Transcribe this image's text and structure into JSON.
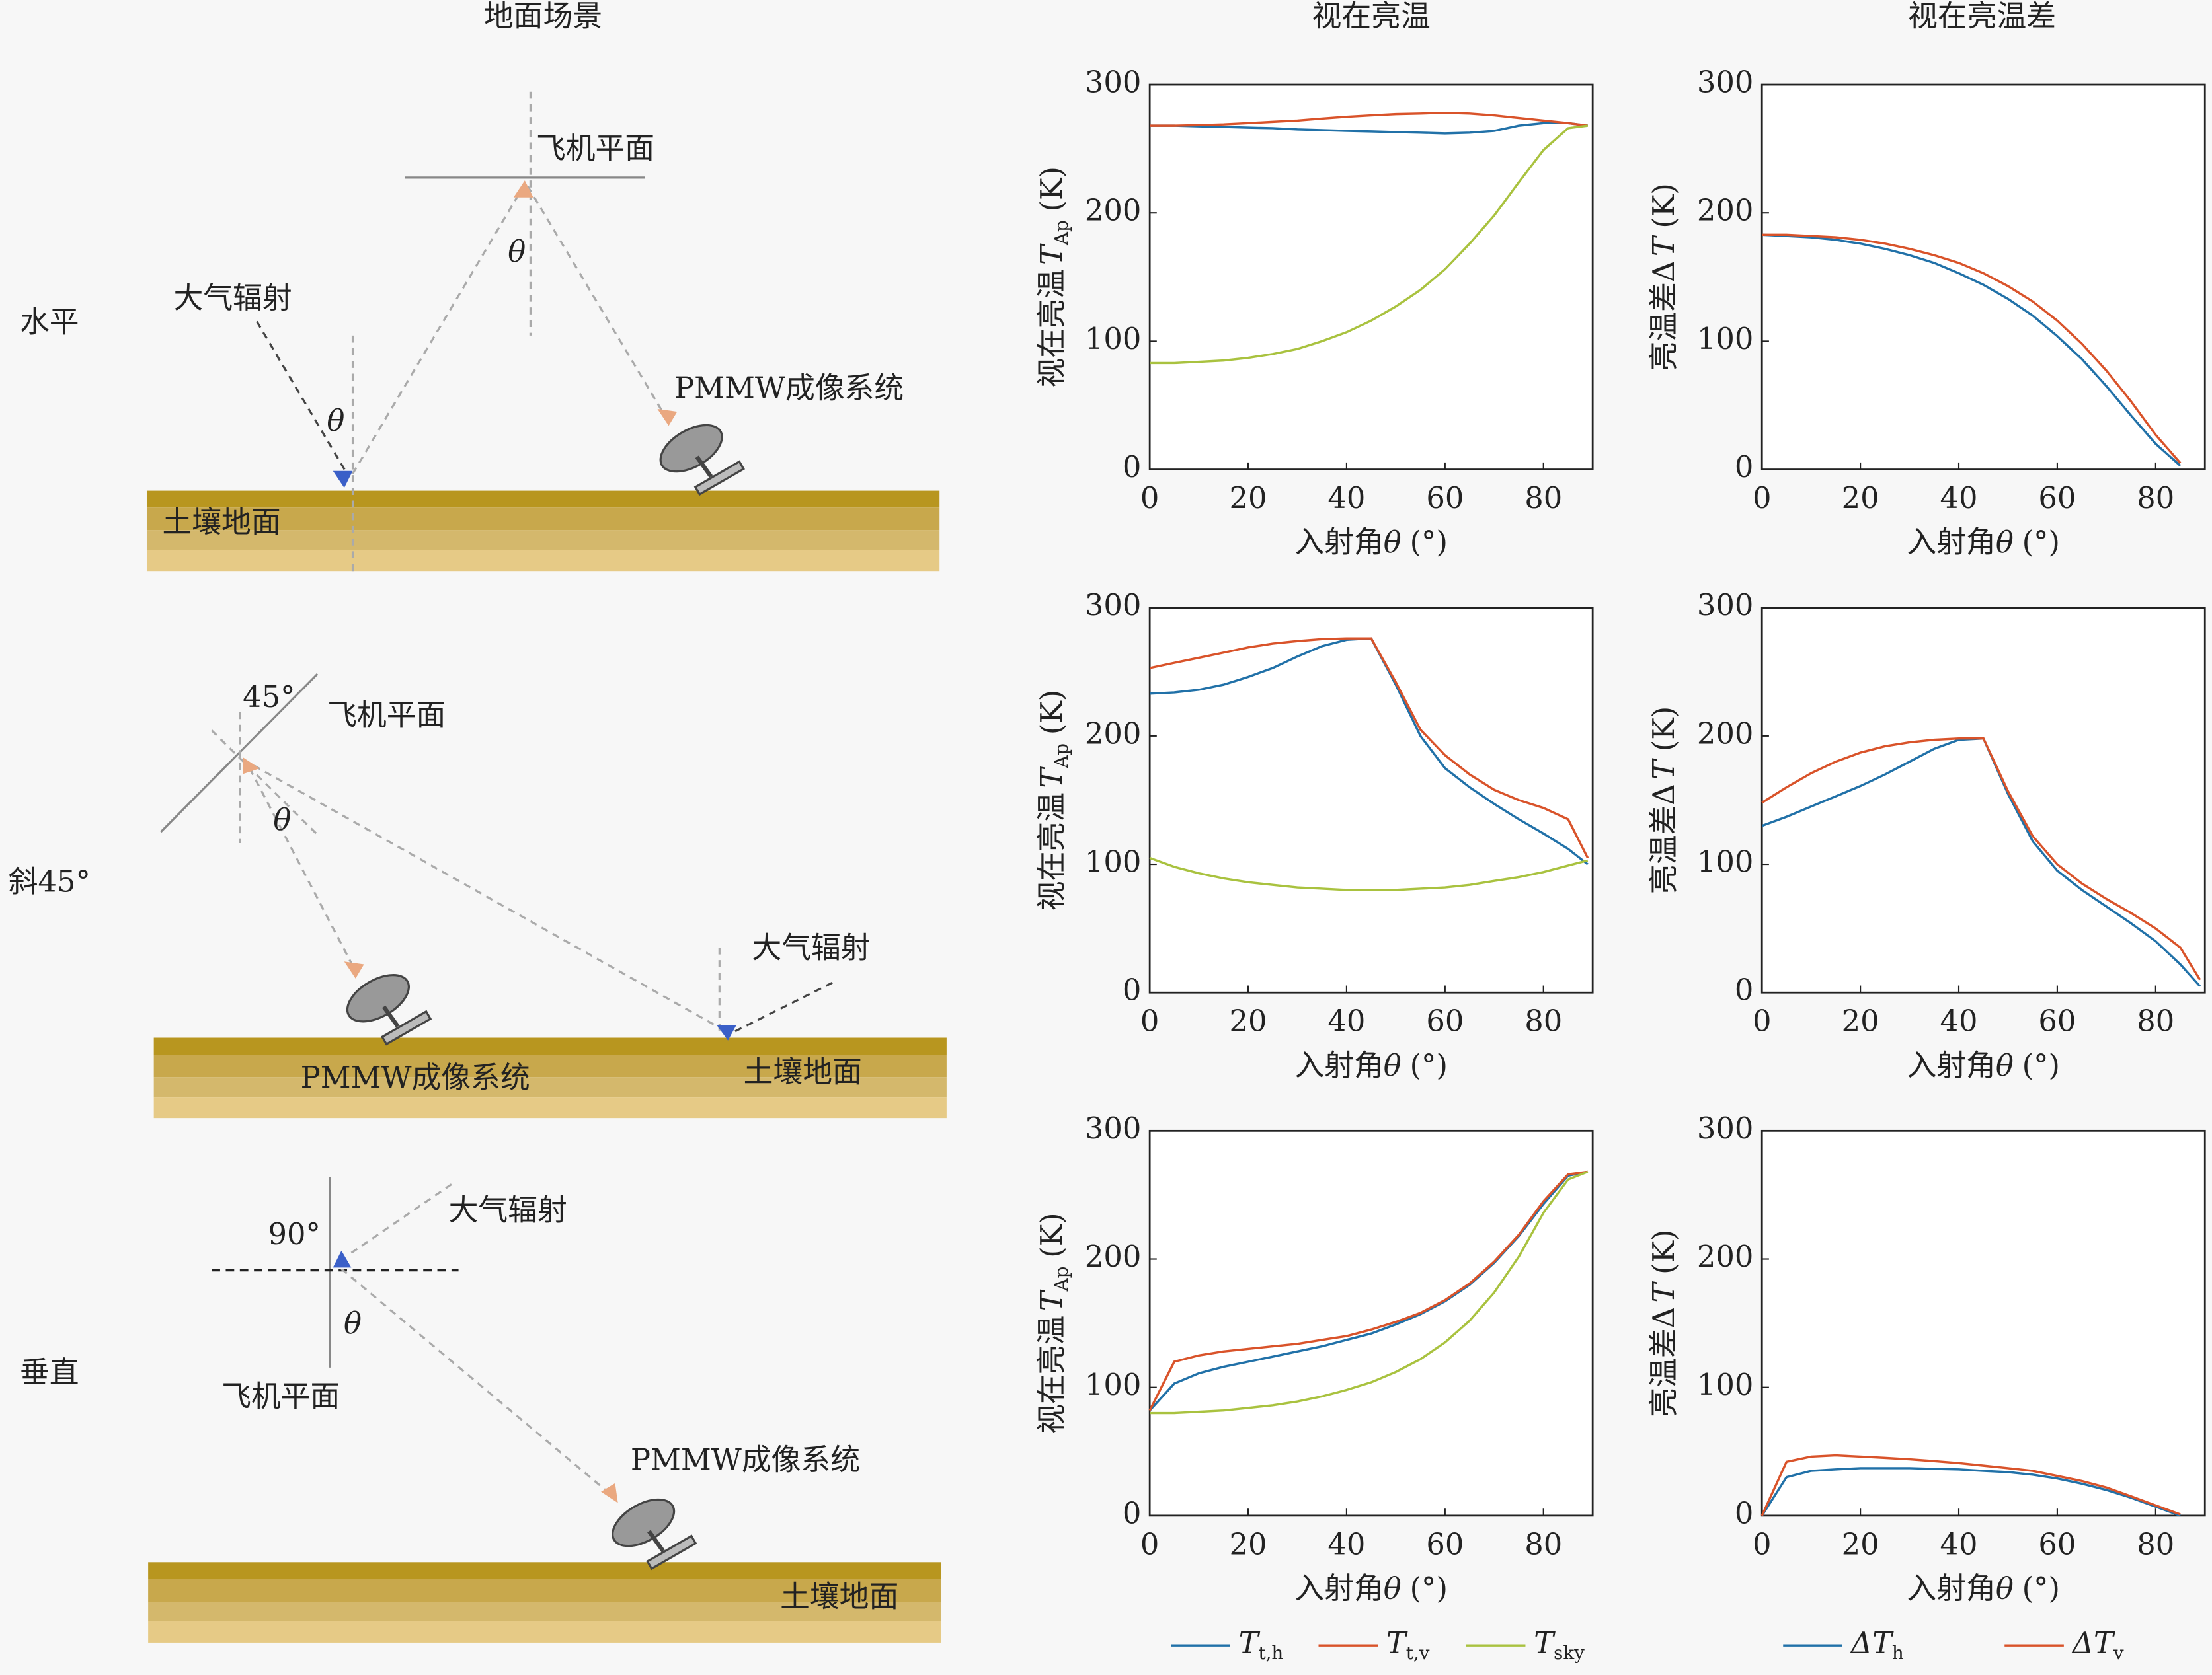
{
  "column_titles": [
    "地面场景",
    "视在亮温",
    "视在亮温差"
  ],
  "row_labels": [
    "水平",
    "斜45°",
    "垂直"
  ],
  "scenes": [
    {
      "labels": [
        "飞机平面",
        "θ",
        "大气辐射",
        "θ",
        "PMMW成像系统",
        "土壤地面"
      ]
    },
    {
      "labels": [
        "45°",
        "飞机平面",
        "θ",
        "大气辐射",
        "PMMW成像系统",
        "土壤地面"
      ]
    },
    {
      "labels": [
        "90°",
        "大气辐射",
        "θ",
        "飞机平面",
        "PMMW成像系统",
        "土壤地面"
      ]
    }
  ],
  "chart_data": [
    {
      "type": "line",
      "x": [
        0,
        5,
        10,
        15,
        20,
        25,
        30,
        35,
        40,
        45,
        50,
        55,
        60,
        65,
        70,
        75,
        80,
        85,
        89
      ],
      "xlim": [
        0,
        90
      ],
      "xticks": [
        0,
        20,
        40,
        60,
        80
      ],
      "ylim": [
        0,
        300
      ],
      "yticks": [
        0,
        100,
        200,
        300
      ],
      "xlabel": {
        "text": "入射角",
        "symbol": "θ",
        "unit": "(°)"
      },
      "ylabel": {
        "text": "视在亮温",
        "symbol": "T",
        "sub": "Ap",
        "unit": "(K)"
      },
      "series": [
        {
          "color": "#2171a8",
          "values": [
            268,
            268,
            267.5,
            267,
            266.5,
            266,
            265,
            264.5,
            264,
            263.5,
            263,
            262.5,
            262,
            262.5,
            264,
            268,
            270,
            270,
            268
          ]
        },
        {
          "color": "#d9532a",
          "values": [
            268,
            268,
            268.5,
            269,
            270,
            271,
            272,
            273.5,
            275,
            276,
            277,
            277.5,
            278,
            277.5,
            276,
            274,
            272,
            270,
            268
          ]
        },
        {
          "color": "#a9c23f",
          "values": [
            83,
            83,
            84,
            85,
            87,
            90,
            94,
            100,
            107,
            116,
            127,
            140,
            156,
            176,
            198,
            224,
            249,
            266,
            268
          ]
        }
      ]
    },
    {
      "type": "line",
      "x": [
        0,
        5,
        10,
        15,
        20,
        25,
        30,
        35,
        40,
        45,
        50,
        55,
        60,
        65,
        70,
        75,
        80,
        85,
        89
      ],
      "xlim": [
        0,
        90
      ],
      "xticks": [
        0,
        20,
        40,
        60,
        80
      ],
      "ylim": [
        0,
        300
      ],
      "yticks": [
        0,
        100,
        200,
        300
      ],
      "xlabel": {
        "text": "入射角",
        "symbol": "θ",
        "unit": "(°)"
      },
      "ylabel": {
        "text": "亮温差Δ",
        "symbol": "T",
        "unit": "(K)"
      },
      "series": [
        {
          "color": "#2171a8",
          "values": [
            183,
            182,
            181,
            179,
            176,
            172,
            167,
            161,
            153,
            144,
            133,
            120,
            104,
            86,
            65,
            42,
            20,
            3,
            null
          ]
        },
        {
          "color": "#d9532a",
          "values": [
            183,
            183,
            182,
            181,
            179,
            176,
            172,
            167,
            161,
            153,
            143,
            131,
            116,
            98,
            77,
            53,
            27,
            5,
            null
          ]
        }
      ]
    },
    {
      "type": "line",
      "x": [
        0,
        5,
        10,
        15,
        20,
        25,
        30,
        35,
        40,
        45,
        50,
        55,
        60,
        65,
        70,
        75,
        80,
        85,
        89
      ],
      "xlim": [
        0,
        90
      ],
      "xticks": [
        0,
        20,
        40,
        60,
        80
      ],
      "ylim": [
        0,
        300
      ],
      "yticks": [
        0,
        100,
        200,
        300
      ],
      "xlabel": {
        "text": "入射角",
        "symbol": "θ",
        "unit": "(°)"
      },
      "ylabel": {
        "text": "视在亮温",
        "symbol": "T",
        "sub": "Ap",
        "unit": "(K)"
      },
      "series": [
        {
          "color": "#2171a8",
          "values": [
            233,
            234,
            236,
            240,
            246,
            253,
            262,
            270,
            275,
            276,
            240,
            200,
            175,
            160,
            147,
            135,
            124,
            112,
            100
          ]
        },
        {
          "color": "#d9532a",
          "values": [
            253,
            257,
            261,
            265,
            269,
            272,
            274,
            275.5,
            276,
            276,
            242,
            205,
            185,
            170,
            158,
            150,
            144,
            135,
            105
          ]
        },
        {
          "color": "#a9c23f",
          "values": [
            105,
            98,
            93,
            89,
            86,
            84,
            82,
            81,
            80,
            80,
            80,
            81,
            82,
            84,
            87,
            90,
            94,
            99,
            103
          ]
        }
      ]
    },
    {
      "type": "line",
      "x": [
        0,
        5,
        10,
        15,
        20,
        25,
        30,
        35,
        40,
        45,
        50,
        55,
        60,
        65,
        70,
        75,
        80,
        85,
        89
      ],
      "xlim": [
        0,
        90
      ],
      "xticks": [
        0,
        20,
        40,
        60,
        80
      ],
      "ylim": [
        0,
        300
      ],
      "yticks": [
        0,
        100,
        200,
        300
      ],
      "xlabel": {
        "text": "入射角",
        "symbol": "θ",
        "unit": "(°)"
      },
      "ylabel": {
        "text": "亮温差Δ",
        "symbol": "T",
        "unit": "(K)"
      },
      "series": [
        {
          "color": "#2171a8",
          "values": [
            130,
            137,
            145,
            153,
            161,
            170,
            180,
            190,
            197,
            198,
            155,
            118,
            95,
            80,
            67,
            54,
            40,
            22,
            5
          ]
        },
        {
          "color": "#d9532a",
          "values": [
            148,
            160,
            171,
            180,
            187,
            192,
            195,
            197,
            198,
            198,
            157,
            122,
            100,
            85,
            73,
            62,
            50,
            35,
            10
          ]
        }
      ]
    },
    {
      "type": "line",
      "x": [
        0,
        5,
        10,
        15,
        20,
        25,
        30,
        35,
        40,
        45,
        50,
        55,
        60,
        65,
        70,
        75,
        80,
        85,
        89
      ],
      "xlim": [
        0,
        90
      ],
      "xticks": [
        0,
        20,
        40,
        60,
        80
      ],
      "ylim": [
        0,
        300
      ],
      "yticks": [
        0,
        100,
        200,
        300
      ],
      "xlabel": {
        "text": "入射角",
        "symbol": "θ",
        "unit": "(°)"
      },
      "ylabel": {
        "text": "视在亮温",
        "symbol": "T",
        "sub": "Ap",
        "unit": "(K)"
      },
      "series": [
        {
          "name": "T",
          "subscript": "t,h",
          "color": "#2171a8",
          "values": [
            82,
            103,
            111,
            116,
            120,
            124,
            128,
            132,
            137,
            142,
            149,
            157,
            167,
            180,
            197,
            218,
            243,
            265,
            268
          ]
        },
        {
          "name": "T",
          "subscript": "t,v",
          "color": "#d9532a",
          "values": [
            82,
            120,
            125,
            128,
            130,
            132,
            134,
            137,
            140,
            145,
            151,
            158,
            168,
            181,
            198,
            219,
            245,
            266,
            268
          ]
        },
        {
          "name": "T",
          "subscript": "sky",
          "color": "#a9c23f",
          "values": [
            80,
            80,
            81,
            82,
            84,
            86,
            89,
            93,
            98,
            104,
            112,
            122,
            135,
            152,
            174,
            202,
            236,
            262,
            268
          ]
        }
      ]
    },
    {
      "type": "line",
      "x": [
        0,
        5,
        10,
        15,
        20,
        25,
        30,
        35,
        40,
        45,
        50,
        55,
        60,
        65,
        70,
        75,
        80,
        85,
        89
      ],
      "xlim": [
        0,
        90
      ],
      "xticks": [
        0,
        20,
        40,
        60,
        80
      ],
      "ylim": [
        0,
        300
      ],
      "yticks": [
        0,
        100,
        200,
        300
      ],
      "xlabel": {
        "text": "入射角",
        "symbol": "θ",
        "unit": "(°)"
      },
      "ylabel": {
        "text": "亮温差Δ",
        "symbol": "T",
        "unit": "(K)"
      },
      "series": [
        {
          "name": "ΔT",
          "subscript": "h",
          "color": "#2171a8",
          "values": [
            0,
            30,
            35,
            36,
            37,
            37,
            37,
            36.5,
            36,
            35,
            34,
            32,
            29,
            25,
            20,
            14,
            7,
            0,
            null
          ]
        },
        {
          "name": "ΔT",
          "subscript": "v",
          "color": "#d9532a",
          "values": [
            0,
            42,
            46,
            47,
            46,
            45,
            44,
            42.5,
            41,
            39,
            37,
            35,
            31,
            27,
            22,
            15,
            8,
            1,
            null
          ]
        }
      ]
    }
  ]
}
